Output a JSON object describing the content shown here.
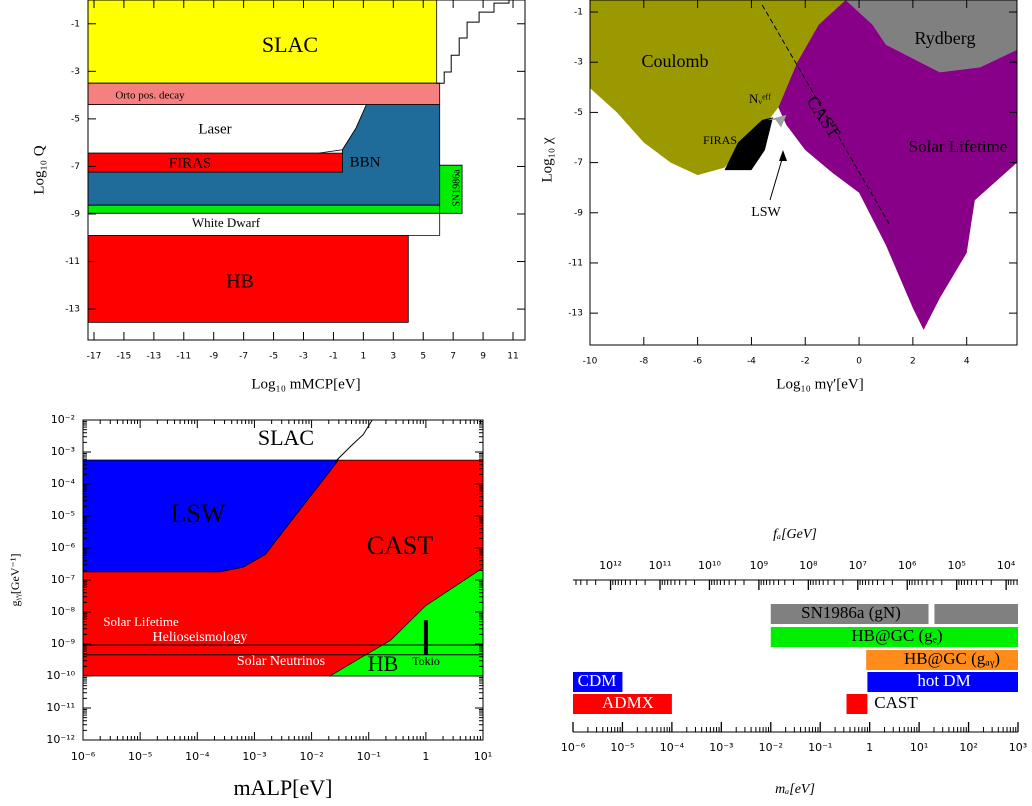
{
  "chart_data": [
    {
      "type": "area",
      "xlabel": "Log₁₀ mMCP[eV]",
      "ylabel": "Log₁₀ Q",
      "xlim": [
        -17.4,
        11.8
      ],
      "ylim": [
        -14.3,
        0
      ],
      "xticks": [
        -17,
        -15,
        -13,
        -11,
        -9,
        -7,
        -5,
        -3,
        -1,
        1,
        3,
        5,
        7,
        9,
        11
      ],
      "yticks": [
        -1,
        -3,
        -5,
        -7,
        -9,
        -11,
        -13
      ],
      "outline": true,
      "regions": [
        {
          "name": "SLAC",
          "color": "#ffff00",
          "x": [
            -17.4,
            5.9,
            5.9,
            -17.4
          ],
          "y": [
            0,
            0,
            -3.5,
            -3.5
          ]
        },
        {
          "name": "Orto pos. decay",
          "color": "#f58080",
          "x": [
            -17.4,
            6.1,
            6.1,
            -17.4
          ],
          "y": [
            -3.5,
            -3.5,
            -4.4,
            -4.4
          ]
        },
        {
          "name": "Laser",
          "color": "#ffffff",
          "x": [
            -17.4,
            1.2,
            0.5,
            -0.4,
            -2,
            -17.4
          ],
          "y": [
            -4.4,
            -4.4,
            -5.4,
            -6.3,
            -6.44,
            -6.44
          ]
        },
        {
          "name": "BBN",
          "color": "#1f6b9a",
          "x": [
            -17.4,
            -0.4,
            -0.4,
            0.5,
            1.2,
            6.1,
            6.1,
            -17.4
          ],
          "y": [
            -7.24,
            -7.24,
            -6.3,
            -5.4,
            -4.4,
            -4.4,
            -8.63,
            -8.63
          ]
        },
        {
          "name": "FIRAS",
          "color": "#ff0000",
          "x": [
            -17.4,
            -0.4,
            -0.4,
            -17.4
          ],
          "y": [
            -6.44,
            -6.44,
            -7.24,
            -7.24
          ]
        },
        {
          "color": "#00ee00",
          "x": [
            -17.4,
            6.1,
            6.1,
            -17.4
          ],
          "y": [
            -8.63,
            -8.63,
            -8.97,
            -8.97
          ]
        },
        {
          "name": "SN1986a",
          "color": "#00ee00",
          "x": [
            6.1,
            7.6,
            7.6,
            6.1
          ],
          "y": [
            -6.95,
            -6.95,
            -8.97,
            -8.97
          ]
        },
        {
          "name": "White Dwarf",
          "color": "#ffffff",
          "x": [
            -17.4,
            6.1,
            6.1,
            -17.4
          ],
          "y": [
            -8.97,
            -8.97,
            -9.9,
            -9.9
          ]
        },
        {
          "name": "HB",
          "color": "#ff0000",
          "x": [
            -17.4,
            4.0,
            4.0,
            -17.4
          ],
          "y": [
            -9.9,
            -9.9,
            -13.56,
            -13.56
          ]
        }
      ],
      "lines": [
        {
          "color": "#000000",
          "x": [
            5.9,
            6.4,
            6.4,
            6.87,
            6.87,
            7.4,
            7.4,
            7.93,
            7.93,
            8.73,
            8.73,
            9.73,
            9.73,
            10.73,
            10.73
          ],
          "y": [
            -3.5,
            -3.5,
            -3.03,
            -3.03,
            -2.32,
            -2.32,
            -1.6,
            -1.6,
            -0.93,
            -0.93,
            -0.51,
            -0.51,
            -0.13,
            -0.13,
            0
          ]
        }
      ]
    },
    {
      "type": "area",
      "xlabel": "Log₁₀ mγ′[eV]",
      "ylabel": "Log₁₀ χ",
      "xlim": [
        -10,
        5.87
      ],
      "ylim": [
        -14.27,
        -0.52
      ],
      "xticks": [
        -10,
        -8,
        -6,
        -4,
        -2,
        0,
        2,
        4
      ],
      "yticks": [
        -1,
        -3,
        -5,
        -7,
        -9,
        -11,
        -13
      ],
      "regions": [
        {
          "name": "Coulomb",
          "color": "#9a9a00",
          "x": [
            -10,
            -0.5,
            -1.5,
            -2.3,
            -3,
            -3.5,
            -4.3,
            -5,
            -6,
            -7,
            -8,
            -9,
            -10
          ],
          "y": [
            -0.52,
            -0.52,
            -1.5,
            -3,
            -4.8,
            -5.5,
            -6.3,
            -7.2,
            -7.5,
            -7,
            -6.2,
            -5,
            -4.03
          ]
        },
        {
          "name": "Rydberg",
          "color": "#808080",
          "x": [
            -0.5,
            5.87,
            5.87,
            4.5,
            3,
            1,
            0.5
          ],
          "y": [
            -0.52,
            -0.52,
            -2.5,
            -3.2,
            -3.4,
            -2.3,
            -1.5
          ]
        },
        {
          "name": "Solar Lifetime",
          "color": "#880088",
          "x": [
            -0.5,
            0.5,
            1,
            3,
            4.5,
            5.87,
            5.87,
            4.3,
            4,
            3,
            2.4,
            2,
            1,
            0,
            -1,
            -2,
            -2.7,
            -3,
            -2.3,
            -1.5
          ],
          "y": [
            -0.52,
            -1.5,
            -2.3,
            -3.4,
            -3.2,
            -2.5,
            -7,
            -8.5,
            -10.6,
            -12.4,
            -13.67,
            -12.8,
            -10.3,
            -8.2,
            -7.4,
            -6.5,
            -5.5,
            -4.8,
            -3,
            -1.5
          ]
        },
        {
          "name": "FIRAS",
          "color": "#000000",
          "x": [
            -5,
            -4,
            -3.5,
            -3.2,
            -3.6,
            -4.5
          ],
          "y": [
            -7.3,
            -7.3,
            -6.5,
            -5.2,
            -5.3,
            -6.2
          ]
        },
        {
          "name": "LSW",
          "color": "#a0a0a0",
          "x": [
            -3.4,
            -2.7,
            -2.9,
            -3.1
          ],
          "y": [
            -5.3,
            -5.1,
            -5.6,
            -5.3
          ]
        }
      ],
      "lines": [
        {
          "name": "CAST",
          "color": "#000000",
          "dash": true,
          "x": [
            -3.6,
            1.15
          ],
          "y": [
            -0.72,
            -9.5
          ]
        }
      ],
      "annotations": [
        "Nᵥᵉᶠᶠ"
      ]
    },
    {
      "type": "area",
      "xscale": "log",
      "yscale": "log",
      "xlabel": "mALP[eV]",
      "ylabel": "gᵧᵧ[GeV⁻¹]",
      "xlim": [
        1e-06,
        10
      ],
      "ylim": [
        1e-12,
        0.01
      ],
      "outline": true,
      "xticks": [
        {
          "value": 1e-06,
          "label": "10⁻⁶"
        },
        {
          "value": 1e-05,
          "label": "10⁻⁵"
        },
        {
          "value": 0.0001,
          "label": "10⁻⁴"
        },
        {
          "value": 0.001,
          "label": "10⁻³"
        },
        {
          "value": 0.01,
          "label": "10⁻²"
        },
        {
          "value": 0.1,
          "label": "10⁻¹"
        },
        {
          "value": 1,
          "label": "1"
        },
        {
          "value": 10,
          "label": "10¹"
        }
      ],
      "yticks": [
        {
          "value": 1e-12,
          "label": "10⁻¹²"
        },
        {
          "value": 1e-11,
          "label": "10⁻¹¹"
        },
        {
          "value": 1e-10,
          "label": "10⁻¹⁰"
        },
        {
          "value": 1e-09,
          "label": "10⁻⁹"
        },
        {
          "value": 1e-08,
          "label": "10⁻⁸"
        },
        {
          "value": 1e-07,
          "label": "10⁻⁷"
        },
        {
          "value": 1e-06,
          "label": "10⁻⁶"
        },
        {
          "value": 1e-05,
          "label": "10⁻⁵"
        },
        {
          "value": 0.0001,
          "label": "10⁻⁴"
        },
        {
          "value": 0.001,
          "label": "10⁻³"
        },
        {
          "value": 0.01,
          "label": "10⁻²"
        }
      ],
      "regions": [
        {
          "name": "CAST",
          "color": "#ff0000",
          "x": [
            1e-06,
            10,
            10,
            1e-06
          ],
          "y": [
            1e-10,
            1e-10,
            0.00056,
            0.00056
          ]
        },
        {
          "name": "LSW",
          "color": "#0000ff",
          "x": [
            1e-06,
            0.0295,
            0.00155,
            0.00063,
            0.00025,
            1e-06
          ],
          "y": [
            0.00056,
            0.00056,
            6.3e-07,
            2.5e-07,
            1.8e-07,
            1.8e-07
          ]
        },
        {
          "name": "HB",
          "color": "#00ff00",
          "x": [
            0.021,
            10,
            10,
            1,
            0.24,
            0.063
          ],
          "y": [
            1e-10,
            1e-10,
            2.4e-07,
            1.6e-08,
            1.3e-09,
            3.2e-10
          ]
        }
      ],
      "lines": [
        {
          "name": "SLAC",
          "color": "#000000",
          "x": [
            0.0257,
            0.05,
            0.08,
            0.115
          ],
          "y": [
            0.00049,
            0.0016,
            0.0035,
            0.01
          ]
        },
        {
          "name": "Helioseismology",
          "color": "#000000",
          "x": [
            1e-06,
            10
          ],
          "y": [
            9.3e-10,
            9.3e-10
          ]
        },
        {
          "name": "Solar Neutrinos",
          "color": "#000000",
          "x": [
            1e-06,
            10
          ],
          "y": [
            4.6e-10,
            4.6e-10
          ]
        },
        {
          "name": "Tokio",
          "color": "#000000",
          "width": 4,
          "x": [
            1,
            1
          ],
          "y": [
            5.6e-09,
            4.6e-10
          ]
        }
      ],
      "annotations": [
        "Solar Lifetime"
      ]
    },
    {
      "type": "range",
      "xscale": "log",
      "xlabel": "mₐ[eV]",
      "x2label": "fₐ[GeV]",
      "xlim": [
        1e-06,
        1000
      ],
      "x2lim": [
        5750000000000.0,
        5750
      ],
      "xticks": [
        {
          "value": 1e-06,
          "label": "10⁻⁶"
        },
        {
          "value": 1e-05,
          "label": "10⁻⁵"
        },
        {
          "value": 0.0001,
          "label": "10⁻⁴"
        },
        {
          "value": 0.001,
          "label": "10⁻³"
        },
        {
          "value": 0.01,
          "label": "10⁻²"
        },
        {
          "value": 0.1,
          "label": "10⁻¹"
        },
        {
          "value": 1,
          "label": "1"
        },
        {
          "value": 10,
          "label": "10¹"
        },
        {
          "value": 100,
          "label": "10²"
        },
        {
          "value": 1000,
          "label": "10³"
        }
      ],
      "x2ticks": [
        {
          "value": 1000000000000.0,
          "label": "10¹²"
        },
        {
          "value": 100000000000.0,
          "label": "10¹¹"
        },
        {
          "value": 10000000000.0,
          "label": "10¹⁰"
        },
        {
          "value": 1000000000.0,
          "label": "10⁹"
        },
        {
          "value": 100000000.0,
          "label": "10⁸"
        },
        {
          "value": 10000000.0,
          "label": "10⁷"
        },
        {
          "value": 1000000.0,
          "label": "10⁶"
        },
        {
          "value": 100000.0,
          "label": "10⁵"
        },
        {
          "value": 10000.0,
          "label": "10⁴"
        }
      ],
      "series": [
        {
          "name": "SN1986a (gN)",
          "color": "#808080",
          "ranges": [
            [
              0.01,
              15.5
            ],
            [
              20.4,
              1000
            ]
          ]
        },
        {
          "name": "HB@GC (gₑ)",
          "color": "#00ee00",
          "ranges": [
            [
              0.01,
              1000
            ]
          ]
        },
        {
          "name": "HB@GC (gₐᵧ)",
          "color": "#ff8c1a",
          "ranges": [
            [
              0.85,
              1000
            ]
          ]
        },
        {
          "name": "hot DM",
          "color": "#0000ff",
          "ranges": [
            [
              0.9,
              1000
            ]
          ]
        },
        {
          "name": "CDM",
          "color": "#0000ff",
          "ranges": [
            [
              1e-06,
              1e-05
            ]
          ]
        },
        {
          "name": "ADMX",
          "color": "#ff0000",
          "ranges": [
            [
              1e-06,
              0.0001
            ]
          ]
        },
        {
          "name": "CAST",
          "color": "#ff0000",
          "ranges": [
            [
              0.34,
              0.9
            ]
          ]
        }
      ]
    }
  ]
}
